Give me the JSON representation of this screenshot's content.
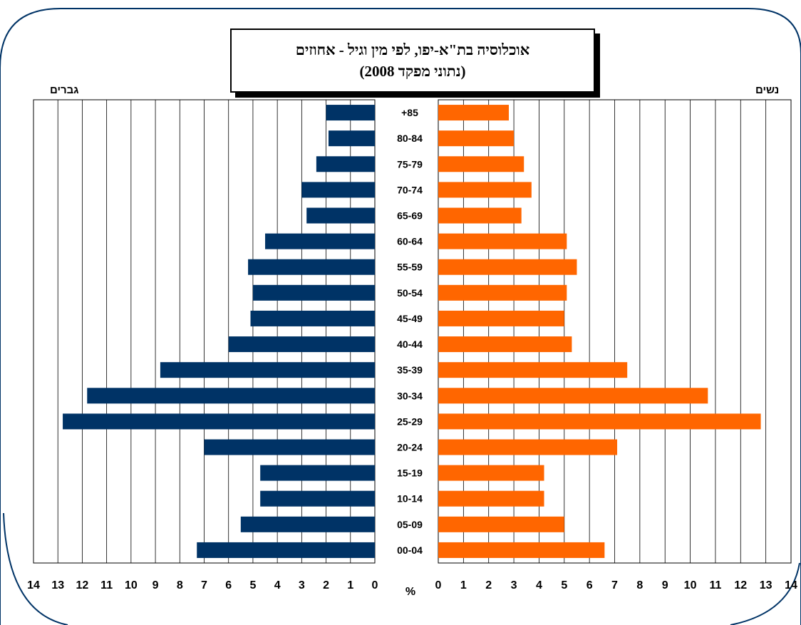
{
  "chart_data": {
    "type": "bar",
    "title": "אוכלוסיה בת\"א-יפו, לפי מין וגיל - אחוזים",
    "subtitle": "(נתוני מפקד 2008)",
    "categories": [
      "00-04",
      "05-09",
      "10-14",
      "15-19",
      "20-24",
      "25-29",
      "30-34",
      "35-39",
      "40-44",
      "45-49",
      "50-54",
      "55-59",
      "60-64",
      "65-69",
      "70-74",
      "75-79",
      "80-84",
      "+85"
    ],
    "series": [
      {
        "name": "גברים",
        "color": "#003366",
        "values": [
          7.3,
          5.5,
          4.7,
          4.7,
          7.0,
          12.8,
          11.8,
          8.8,
          6.0,
          5.1,
          5.0,
          5.2,
          4.5,
          2.8,
          3.0,
          2.4,
          1.9,
          2.0
        ]
      },
      {
        "name": "נשים",
        "color": "#ff6600",
        "values": [
          6.6,
          5.0,
          4.2,
          4.2,
          7.1,
          12.8,
          10.7,
          7.5,
          5.3,
          5.0,
          5.1,
          5.5,
          5.1,
          3.3,
          3.7,
          3.4,
          3.0,
          2.8
        ]
      }
    ],
    "xlim": [
      0,
      14
    ],
    "x_ticks": [
      "0",
      "1",
      "2",
      "3",
      "4",
      "5",
      "6",
      "7",
      "8",
      "9",
      "10",
      "11",
      "12",
      "13",
      "14"
    ],
    "axis_unit": "%",
    "grid": true
  }
}
